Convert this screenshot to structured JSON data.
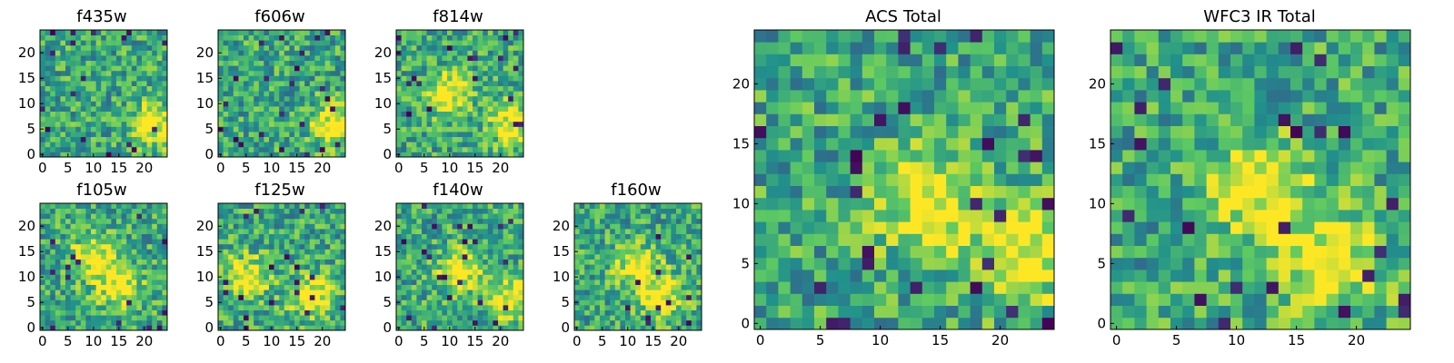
{
  "chart_data": [
    {
      "type": "heatmap",
      "title": "f435w",
      "colormap": "viridis",
      "grid": false,
      "xlim": [
        0,
        24
      ],
      "ylim": [
        0,
        24
      ],
      "xticks": [
        0,
        5,
        10,
        15,
        20
      ],
      "yticks": [
        0,
        5,
        10,
        15,
        20
      ],
      "hotspots": [
        {
          "x": 22,
          "y": 6
        }
      ]
    },
    {
      "type": "heatmap",
      "title": "f606w",
      "colormap": "viridis",
      "grid": false,
      "xlim": [
        0,
        24
      ],
      "ylim": [
        0,
        24
      ],
      "xticks": [
        0,
        5,
        10,
        15,
        20
      ],
      "yticks": [
        0,
        5,
        10,
        15,
        20
      ],
      "hotspots": [
        {
          "x": 22,
          "y": 6
        }
      ]
    },
    {
      "type": "heatmap",
      "title": "f814w",
      "colormap": "viridis",
      "grid": false,
      "xlim": [
        0,
        24
      ],
      "ylim": [
        0,
        24
      ],
      "xticks": [
        0,
        5,
        10,
        15,
        20
      ],
      "yticks": [
        0,
        5,
        10,
        15,
        20
      ],
      "hotspots": [
        {
          "x": 10,
          "y": 12
        },
        {
          "x": 22,
          "y": 6
        }
      ]
    },
    {
      "type": "heatmap",
      "title": "f105w",
      "colormap": "viridis",
      "grid": false,
      "xlim": [
        0,
        24
      ],
      "ylim": [
        0,
        24
      ],
      "xticks": [
        0,
        5,
        10,
        15,
        20
      ],
      "yticks": [
        0,
        5,
        10,
        15,
        20
      ],
      "hotspots": [
        {
          "x": 15,
          "y": 8
        },
        {
          "x": 10,
          "y": 14
        }
      ]
    },
    {
      "type": "heatmap",
      "title": "f125w",
      "colormap": "viridis",
      "grid": false,
      "xlim": [
        0,
        24
      ],
      "ylim": [
        0,
        24
      ],
      "xticks": [
        0,
        5,
        10,
        15,
        20
      ],
      "yticks": [
        0,
        5,
        10,
        15,
        20
      ],
      "hotspots": [
        {
          "x": 5,
          "y": 10
        },
        {
          "x": 18,
          "y": 6
        }
      ]
    },
    {
      "type": "heatmap",
      "title": "f140w",
      "colormap": "viridis",
      "grid": false,
      "xlim": [
        0,
        24
      ],
      "ylim": [
        0,
        24
      ],
      "xticks": [
        0,
        5,
        10,
        15,
        20
      ],
      "yticks": [
        0,
        5,
        10,
        15,
        20
      ],
      "hotspots": [
        {
          "x": 12,
          "y": 11
        },
        {
          "x": 22,
          "y": 6
        }
      ]
    },
    {
      "type": "heatmap",
      "title": "f160w",
      "colormap": "viridis",
      "grid": false,
      "xlim": [
        0,
        24
      ],
      "ylim": [
        0,
        24
      ],
      "xticks": [
        0,
        5,
        10,
        15,
        20
      ],
      "yticks": [
        0,
        5,
        10,
        15,
        20
      ],
      "hotspots": [
        {
          "x": 17,
          "y": 6
        },
        {
          "x": 12,
          "y": 12
        }
      ]
    },
    {
      "type": "heatmap",
      "title": "ACS Total",
      "colormap": "viridis",
      "grid": false,
      "xlim": [
        0,
        24
      ],
      "ylim": [
        0,
        24
      ],
      "xticks": [
        0,
        5,
        10,
        15,
        20
      ],
      "yticks": [
        0,
        5,
        10,
        15,
        20
      ],
      "hotspots": [
        {
          "x": 22,
          "y": 6
        },
        {
          "x": 14,
          "y": 10
        }
      ]
    },
    {
      "type": "heatmap",
      "title": "WFC3 IR Total",
      "colormap": "viridis",
      "grid": false,
      "xlim": [
        0,
        24
      ],
      "ylim": [
        0,
        24
      ],
      "xticks": [
        0,
        5,
        10,
        15,
        20
      ],
      "yticks": [
        0,
        5,
        10,
        15,
        20
      ],
      "hotspots": [
        {
          "x": 12,
          "y": 11
        },
        {
          "x": 18,
          "y": 5
        }
      ]
    }
  ],
  "colors": {
    "viridis_stops": [
      "#440154",
      "#3b528b",
      "#21918c",
      "#5ec962",
      "#fde725"
    ]
  }
}
